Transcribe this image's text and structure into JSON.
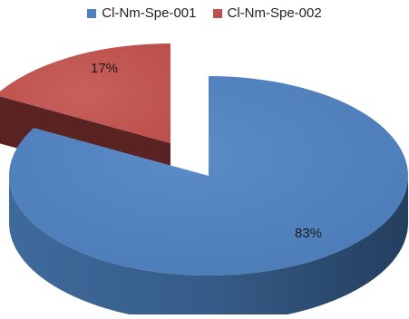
{
  "chart_data": {
    "type": "pie",
    "style": "3d-exploded",
    "series": [
      {
        "name": "Cl-Nm-Spe-001",
        "value": 83,
        "label": "83%",
        "color": "#4f81bd",
        "side_color": "#2f4f76"
      },
      {
        "name": "Cl-Nm-Spe-002",
        "value": 17,
        "label": "17%",
        "color": "#c0504d",
        "side_color": "#5a2220"
      }
    ],
    "legend_position": "top"
  }
}
